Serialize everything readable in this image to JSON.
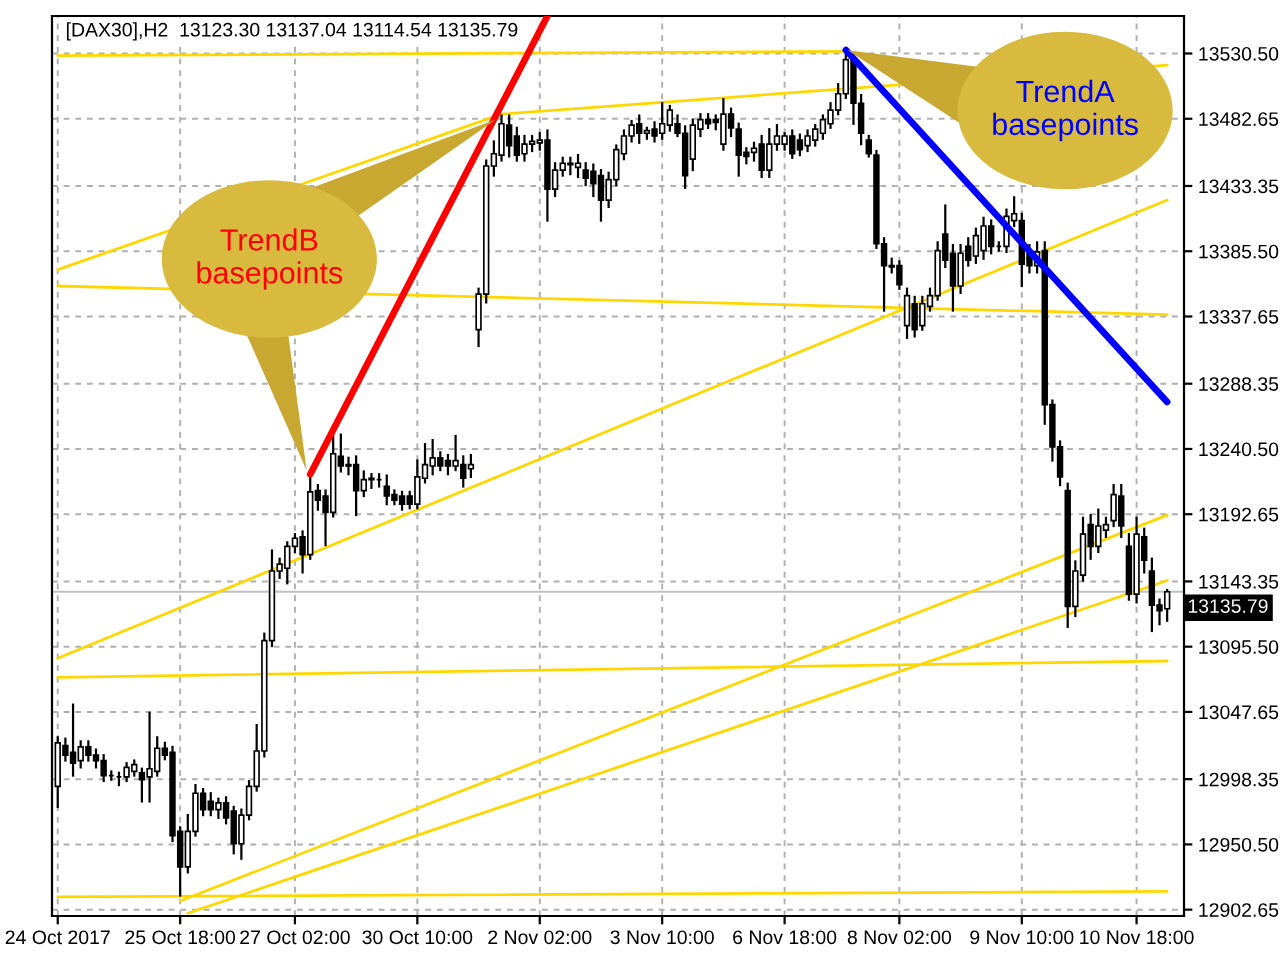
{
  "chart_data": {
    "type": "candlestick",
    "title": "[DAX30],H2  13123.30 13137.04 13114.54 13135.79",
    "categories": [
      "24 Oct 2017",
      null,
      null,
      null,
      null,
      null,
      null,
      null,
      null,
      null,
      null,
      null,
      null,
      null,
      null,
      null,
      "25 Oct 18:00",
      null,
      null,
      null,
      null,
      null,
      null,
      null,
      null,
      null,
      null,
      null,
      null,
      null,
      null,
      "27 Oct 02:00",
      null,
      null,
      null,
      null,
      null,
      null,
      null,
      null,
      null,
      null,
      null,
      null,
      null,
      null,
      null,
      "30 Oct 10:00",
      null,
      null,
      null,
      null,
      null,
      null,
      null,
      null,
      null,
      null,
      null,
      null,
      null,
      null,
      null,
      "2 Nov 02:00",
      null,
      null,
      null,
      null,
      null,
      null,
      null,
      null,
      null,
      null,
      null,
      null,
      null,
      null,
      null,
      "3 Nov 10:00",
      null,
      null,
      null,
      null,
      null,
      null,
      null,
      null,
      null,
      null,
      null,
      null,
      null,
      null,
      null,
      "6 Nov 18:00",
      null,
      null,
      null,
      null,
      null,
      null,
      null,
      null,
      null,
      null,
      null,
      null,
      null,
      null,
      "8 Nov 02:00",
      null,
      null,
      null,
      null,
      null,
      null,
      null,
      null,
      null,
      null,
      null,
      null,
      null,
      null,
      null,
      "9 Nov 10:00",
      null,
      null,
      null,
      null,
      null,
      null,
      null,
      null,
      null,
      null,
      null,
      null,
      null,
      null,
      "10 Nov 18:00",
      null,
      null,
      null,
      null
    ],
    "ohlc": [
      [
        12993,
        13029,
        12978,
        13025
      ],
      [
        13023,
        13028,
        13012,
        13016
      ],
      [
        13018,
        13053,
        13001,
        13010
      ],
      [
        13012,
        13026,
        13007,
        13022
      ],
      [
        13022,
        13026,
        13012,
        13016
      ],
      [
        13016,
        13020,
        13007,
        13012
      ],
      [
        13012,
        13016,
        12997,
        13001
      ],
      [
        13001,
        13004,
        12998,
        13001
      ],
      [
        13000,
        13003,
        12994,
        13000
      ],
      [
        13000,
        13010,
        12997,
        13007
      ],
      [
        13004,
        13012,
        13001,
        13009
      ],
      [
        13003,
        13006,
        12982,
        12998
      ],
      [
        13000,
        13047,
        12982,
        13006
      ],
      [
        13004,
        13029,
        13001,
        13021
      ],
      [
        13021,
        13025,
        13013,
        13016
      ],
      [
        13018,
        13022,
        12953,
        12957
      ],
      [
        12960,
        12963,
        12913,
        12934
      ],
      [
        12934,
        12972,
        12930,
        12960
      ],
      [
        12960,
        12994,
        12957,
        12988
      ],
      [
        12988,
        12991,
        12972,
        12976
      ],
      [
        12982,
        12988,
        12972,
        12976
      ],
      [
        12976,
        12984,
        12970,
        12981
      ],
      [
        12981,
        12985,
        12966,
        12970
      ],
      [
        12975,
        12978,
        12944,
        12951
      ],
      [
        12951,
        12976,
        12940,
        12972
      ],
      [
        12972,
        12997,
        12969,
        12993
      ],
      [
        12993,
        13038,
        12990,
        13019
      ],
      [
        13019,
        13105,
        13015,
        13100
      ],
      [
        13100,
        13166,
        13096,
        13151
      ],
      [
        13151,
        13160,
        13146,
        13156
      ],
      [
        13153,
        13172,
        13142,
        13169
      ],
      [
        13169,
        13178,
        13165,
        13175
      ],
      [
        13176,
        13180,
        13150,
        13163
      ],
      [
        13163,
        13222,
        13160,
        13209
      ],
      [
        13210,
        13214,
        13196,
        13203
      ],
      [
        13206,
        13210,
        13170,
        13194
      ],
      [
        13194,
        13250,
        13191,
        13237
      ],
      [
        13235,
        13251,
        13224,
        13228
      ],
      [
        13228,
        13234,
        13222,
        13229
      ],
      [
        13229,
        13235,
        13192,
        13210
      ],
      [
        13210,
        13224,
        13206,
        13218
      ],
      [
        13218,
        13222,
        13212,
        13219
      ],
      [
        13218,
        13222,
        13213,
        13218
      ],
      [
        13213,
        13221,
        13200,
        13206
      ],
      [
        13207,
        13210,
        13200,
        13203
      ],
      [
        13206,
        13209,
        13196,
        13200
      ],
      [
        13206,
        13209,
        13197,
        13200
      ],
      [
        13200,
        13232,
        13197,
        13220
      ],
      [
        13219,
        13244,
        13216,
        13229
      ],
      [
        13228,
        13247,
        13222,
        13234
      ],
      [
        13234,
        13238,
        13225,
        13228
      ],
      [
        13232,
        13236,
        13222,
        13228
      ],
      [
        13228,
        13250,
        13225,
        13232
      ],
      [
        13229,
        13235,
        13213,
        13219
      ],
      [
        13226,
        13236,
        13220,
        13229
      ],
      [
        13328,
        13358,
        13316,
        13354
      ],
      [
        13354,
        13452,
        13348,
        13448
      ],
      [
        13448,
        13466,
        13441,
        13457
      ],
      [
        13456,
        13485,
        13452,
        13479
      ],
      [
        13478,
        13485,
        13455,
        13463
      ],
      [
        13470,
        13476,
        13452,
        13456
      ],
      [
        13457,
        13470,
        13452,
        13464
      ],
      [
        13464,
        13470,
        13459,
        13466
      ],
      [
        13465,
        13472,
        13460,
        13467
      ],
      [
        13467,
        13474,
        13408,
        13431
      ],
      [
        13431,
        13450,
        13426,
        13445
      ],
      [
        13445,
        13454,
        13441,
        13450
      ],
      [
        13450,
        13454,
        13442,
        13449
      ],
      [
        13447,
        13456,
        13440,
        13450
      ],
      [
        13445,
        13450,
        13434,
        13439
      ],
      [
        13444,
        13449,
        13426,
        13435
      ],
      [
        13441,
        13445,
        13408,
        13423
      ],
      [
        13423,
        13443,
        13418,
        13438
      ],
      [
        13438,
        13463,
        13434,
        13460
      ],
      [
        13457,
        13474,
        13453,
        13470
      ],
      [
        13470,
        13481,
        13466,
        13478
      ],
      [
        13479,
        13485,
        13465,
        13472
      ],
      [
        13472,
        13476,
        13468,
        13474
      ],
      [
        13475,
        13480,
        13466,
        13470
      ],
      [
        13472,
        13494,
        13468,
        13479
      ],
      [
        13478,
        13492,
        13474,
        13489
      ],
      [
        13479,
        13485,
        13470,
        13472
      ],
      [
        13472,
        13477,
        13432,
        13441
      ],
      [
        13453,
        13482,
        13445,
        13478
      ],
      [
        13475,
        13486,
        13470,
        13482
      ],
      [
        13482,
        13486,
        13476,
        13479
      ],
      [
        13482,
        13485,
        13475,
        13480
      ],
      [
        13464,
        13497,
        13460,
        13486
      ],
      [
        13486,
        13490,
        13470,
        13476
      ],
      [
        13475,
        13479,
        13441,
        13456
      ],
      [
        13458,
        13461,
        13450,
        13455
      ],
      [
        13458,
        13465,
        13452,
        13461
      ],
      [
        13464,
        13470,
        13440,
        13445
      ],
      [
        13445,
        13475,
        13440,
        13464
      ],
      [
        13464,
        13478,
        13460,
        13470
      ],
      [
        13464,
        13472,
        13460,
        13470
      ],
      [
        13470,
        13474,
        13454,
        13457
      ],
      [
        13467,
        13471,
        13456,
        13460
      ],
      [
        13463,
        13474,
        13459,
        13470
      ],
      [
        13467,
        13478,
        13463,
        13475
      ],
      [
        13472,
        13485,
        13468,
        13482
      ],
      [
        13479,
        13494,
        13476,
        13489
      ],
      [
        13489,
        13508,
        13486,
        13501
      ],
      [
        13501,
        13533,
        13498,
        13526
      ],
      [
        13526,
        13529,
        13479,
        13494
      ],
      [
        13494,
        13500,
        13464,
        13472
      ],
      [
        13467,
        13470,
        13455,
        13457
      ],
      [
        13456,
        13459,
        13388,
        13391
      ],
      [
        13391,
        13395,
        13342,
        13375
      ],
      [
        13375,
        13380,
        13370,
        13374
      ],
      [
        13375,
        13378,
        13358,
        13361
      ],
      [
        13331,
        13358,
        13322,
        13353
      ],
      [
        13347,
        13352,
        13323,
        13328
      ],
      [
        13331,
        13352,
        13328,
        13347
      ],
      [
        13345,
        13358,
        13342,
        13353
      ],
      [
        13353,
        13392,
        13350,
        13386
      ],
      [
        13398,
        13419,
        13374,
        13379
      ],
      [
        13384,
        13390,
        13342,
        13360
      ],
      [
        13360,
        13390,
        13355,
        13384
      ],
      [
        13389,
        13395,
        13375,
        13379
      ],
      [
        13382,
        13402,
        13377,
        13397
      ],
      [
        13386,
        13410,
        13380,
        13404
      ],
      [
        13404,
        13408,
        13384,
        13389
      ],
      [
        13389,
        13392,
        13386,
        13389
      ],
      [
        13389,
        13416,
        13385,
        13411
      ],
      [
        13408,
        13425,
        13404,
        13413
      ],
      [
        13408,
        13413,
        13360,
        13376
      ],
      [
        13384,
        13390,
        13370,
        13375
      ],
      [
        13375,
        13392,
        13370,
        13385
      ],
      [
        13386,
        13392,
        13259,
        13273
      ],
      [
        13273,
        13276,
        13232,
        13242
      ],
      [
        13242,
        13246,
        13214,
        13220
      ],
      [
        13210,
        13215,
        13110,
        13125
      ],
      [
        13125,
        13158,
        13118,
        13151
      ],
      [
        13148,
        13190,
        13144,
        13178
      ],
      [
        13185,
        13192,
        13160,
        13169
      ],
      [
        13169,
        13196,
        13165,
        13184
      ],
      [
        13181,
        13190,
        13176,
        13185
      ],
      [
        13188,
        13214,
        13184,
        13207
      ],
      [
        13206,
        13214,
        13176,
        13184
      ],
      [
        13169,
        13178,
        13130,
        13134
      ],
      [
        13134,
        13190,
        13128,
        13178
      ],
      [
        13176,
        13182,
        13150,
        13159
      ],
      [
        13151,
        13160,
        13107,
        13126
      ],
      [
        13126,
        13130,
        13112,
        13122
      ],
      [
        13123.3,
        13137.04,
        13114.54,
        13135.79
      ]
    ],
    "series": [
      {
        "type": "line",
        "color": "#ffd700",
        "values": [
          13087,
          null,
          null,
          null,
          null,
          null,
          null,
          null,
          null,
          null,
          null,
          null,
          null,
          null,
          null,
          null,
          null,
          null,
          null,
          null,
          null,
          null,
          null,
          null,
          null,
          null,
          null,
          null,
          null,
          null,
          null,
          null,
          null,
          null,
          null,
          null,
          null,
          null,
          null,
          null,
          null,
          null,
          null,
          null,
          null,
          null,
          null,
          null,
          null,
          null,
          null,
          null,
          null,
          null,
          null,
          null,
          null,
          null,
          null,
          null,
          null,
          null,
          null,
          null,
          null,
          null,
          null,
          null,
          null,
          null,
          null,
          null,
          null,
          null,
          null,
          null,
          null,
          null,
          null,
          null,
          null,
          null,
          null,
          null,
          null,
          null,
          null,
          null,
          null,
          null,
          null,
          null,
          null,
          null,
          null,
          null,
          null,
          null,
          null,
          null,
          null,
          null,
          null,
          null,
          null,
          null,
          null,
          null,
          null,
          null,
          null,
          null,
          null,
          null,
          null,
          null,
          null,
          null,
          null,
          null,
          null,
          null,
          null,
          null,
          null,
          null,
          null,
          null,
          null,
          null,
          null,
          null,
          null,
          null,
          null,
          null,
          null,
          null,
          null,
          null,
          null,
          null,
          null,
          null,
          null,
          13423
        ]
      },
      {
        "type": "line",
        "color": "#ffd700",
        "values": [
          13073,
          null,
          null,
          null,
          null,
          null,
          null,
          null,
          null,
          null,
          null,
          null,
          null,
          null,
          null,
          null,
          null,
          null,
          null,
          null,
          null,
          null,
          null,
          null,
          null,
          null,
          null,
          null,
          null,
          null,
          null,
          null,
          null,
          null,
          null,
          null,
          null,
          null,
          null,
          null,
          null,
          null,
          null,
          null,
          null,
          null,
          null,
          null,
          null,
          null,
          null,
          null,
          null,
          null,
          null,
          null,
          null,
          null,
          null,
          null,
          null,
          null,
          null,
          null,
          null,
          null,
          null,
          null,
          null,
          null,
          null,
          null,
          null,
          null,
          null,
          null,
          null,
          null,
          null,
          null,
          null,
          null,
          null,
          null,
          null,
          null,
          null,
          null,
          null,
          null,
          null,
          null,
          null,
          null,
          null,
          null,
          null,
          null,
          null,
          null,
          null,
          null,
          null,
          null,
          null,
          null,
          null,
          null,
          null,
          null,
          null,
          null,
          null,
          null,
          null,
          null,
          null,
          null,
          null,
          null,
          null,
          null,
          null,
          null,
          null,
          null,
          null,
          null,
          null,
          null,
          null,
          null,
          null,
          null,
          null,
          null,
          null,
          null,
          null,
          null,
          null,
          null,
          null,
          null,
          null,
          13085
        ]
      },
      {
        "type": "line",
        "color": "#ffd700",
        "values": [
          12912,
          null,
          null,
          null,
          null,
          null,
          null,
          null,
          null,
          null,
          null,
          null,
          null,
          null,
          null,
          null,
          null,
          null,
          null,
          null,
          null,
          null,
          null,
          null,
          null,
          null,
          null,
          null,
          null,
          null,
          null,
          null,
          null,
          null,
          null,
          null,
          null,
          null,
          null,
          null,
          null,
          null,
          null,
          null,
          null,
          null,
          null,
          null,
          null,
          null,
          null,
          null,
          null,
          null,
          null,
          null,
          null,
          null,
          null,
          null,
          null,
          null,
          null,
          null,
          null,
          null,
          null,
          null,
          null,
          null,
          null,
          null,
          null,
          null,
          null,
          null,
          null,
          null,
          null,
          null,
          null,
          null,
          null,
          null,
          null,
          null,
          null,
          null,
          null,
          null,
          null,
          null,
          null,
          null,
          null,
          null,
          null,
          null,
          null,
          null,
          null,
          null,
          null,
          null,
          null,
          null,
          null,
          null,
          null,
          null,
          null,
          null,
          null,
          null,
          null,
          null,
          null,
          null,
          null,
          null,
          null,
          null,
          null,
          null,
          null,
          null,
          null,
          null,
          null,
          null,
          null,
          null,
          null,
          null,
          null,
          null,
          null,
          null,
          null,
          null,
          null,
          null,
          null,
          null,
          null,
          12916
        ]
      },
      {
        "type": "line",
        "color": "#ffd700",
        "values": [
          13360,
          null,
          null,
          null,
          null,
          null,
          null,
          null,
          null,
          null,
          null,
          null,
          null,
          null,
          null,
          null,
          null,
          null,
          null,
          null,
          null,
          null,
          null,
          null,
          null,
          null,
          null,
          null,
          null,
          null,
          null,
          null,
          null,
          null,
          null,
          null,
          null,
          null,
          null,
          null,
          null,
          null,
          null,
          null,
          null,
          null,
          null,
          null,
          null,
          null,
          null,
          null,
          null,
          null,
          null,
          null,
          null,
          null,
          null,
          null,
          null,
          null,
          null,
          null,
          null,
          null,
          null,
          null,
          null,
          null,
          null,
          null,
          null,
          null,
          null,
          null,
          null,
          null,
          null,
          null,
          null,
          null,
          null,
          null,
          null,
          null,
          null,
          null,
          null,
          null,
          null,
          null,
          null,
          null,
          null,
          null,
          null,
          null,
          null,
          null,
          null,
          null,
          null,
          null,
          null,
          null,
          null,
          null,
          null,
          null,
          null,
          null,
          null,
          null,
          null,
          null,
          null,
          null,
          null,
          null,
          null,
          null,
          null,
          null,
          null,
          null,
          null,
          null,
          null,
          null,
          null,
          null,
          null,
          null,
          null,
          null,
          null,
          null,
          null,
          null,
          null,
          null,
          null,
          null,
          null,
          13339
        ]
      },
      {
        "type": "line",
        "color": "#ffd700",
        "values": [
          null,
          null,
          null,
          null,
          null,
          null,
          null,
          null,
          null,
          null,
          null,
          null,
          null,
          null,
          null,
          null,
          12909,
          null,
          null,
          null,
          null,
          null,
          null,
          null,
          null,
          null,
          null,
          null,
          null,
          null,
          null,
          null,
          null,
          null,
          null,
          null,
          null,
          null,
          null,
          null,
          null,
          null,
          null,
          null,
          null,
          null,
          null,
          null,
          null,
          null,
          null,
          null,
          null,
          null,
          null,
          null,
          null,
          null,
          null,
          null,
          null,
          null,
          null,
          null,
          null,
          null,
          null,
          null,
          null,
          null,
          null,
          null,
          null,
          null,
          null,
          null,
          null,
          null,
          null,
          null,
          null,
          null,
          null,
          null,
          null,
          null,
          null,
          null,
          null,
          null,
          null,
          null,
          null,
          null,
          null,
          null,
          null,
          null,
          null,
          null,
          null,
          null,
          null,
          null,
          null,
          null,
          null,
          null,
          null,
          null,
          null,
          null,
          null,
          null,
          null,
          null,
          null,
          null,
          null,
          null,
          null,
          null,
          null,
          null,
          null,
          null,
          null,
          null,
          null,
          null,
          null,
          null,
          null,
          null,
          null,
          null,
          null,
          null,
          null,
          null,
          null,
          null,
          null,
          null,
          null,
          13192
        ]
      },
      {
        "type": "line",
        "color": "#ffd700",
        "values": [
          null,
          null,
          null,
          null,
          null,
          null,
          null,
          null,
          null,
          null,
          null,
          null,
          null,
          null,
          null,
          null,
          null,
          12900,
          null,
          null,
          null,
          null,
          null,
          null,
          null,
          null,
          null,
          null,
          null,
          null,
          null,
          null,
          null,
          null,
          null,
          null,
          null,
          null,
          null,
          null,
          null,
          null,
          null,
          null,
          null,
          null,
          null,
          null,
          null,
          null,
          null,
          null,
          null,
          null,
          null,
          null,
          null,
          null,
          null,
          null,
          null,
          null,
          null,
          null,
          null,
          null,
          null,
          null,
          null,
          null,
          null,
          null,
          null,
          null,
          null,
          null,
          null,
          null,
          null,
          null,
          null,
          null,
          null,
          null,
          null,
          null,
          null,
          null,
          null,
          null,
          null,
          null,
          null,
          null,
          null,
          null,
          null,
          null,
          null,
          null,
          null,
          null,
          null,
          null,
          null,
          null,
          null,
          null,
          null,
          null,
          null,
          null,
          null,
          null,
          null,
          null,
          null,
          null,
          null,
          null,
          null,
          null,
          null,
          null,
          null,
          null,
          null,
          null,
          null,
          null,
          null,
          null,
          null,
          null,
          null,
          null,
          null,
          null,
          null,
          null,
          null,
          null,
          null,
          null,
          null,
          13144
        ]
      },
      {
        "type": "line",
        "color": "#ffd700",
        "values": [
          13529,
          null,
          null,
          null,
          null,
          null,
          null,
          null,
          null,
          null,
          null,
          null,
          null,
          null,
          null,
          null,
          null,
          null,
          null,
          null,
          null,
          null,
          null,
          null,
          null,
          null,
          null,
          null,
          null,
          null,
          null,
          null,
          null,
          null,
          null,
          null,
          null,
          null,
          null,
          null,
          null,
          null,
          null,
          null,
          null,
          null,
          null,
          null,
          null,
          null,
          null,
          null,
          null,
          null,
          null,
          null,
          null,
          null,
          null,
          null,
          null,
          null,
          null,
          null,
          null,
          null,
          null,
          null,
          null,
          null,
          null,
          null,
          null,
          null,
          null,
          null,
          null,
          null,
          null,
          null,
          null,
          null,
          null,
          null,
          null,
          null,
          null,
          null,
          null,
          null,
          null,
          null,
          null,
          null,
          null,
          null,
          null,
          null,
          null,
          null,
          null,
          null,
          null,
          13532,
          null,
          null,
          null,
          null,
          null,
          null,
          null,
          null,
          null,
          null,
          null,
          null,
          null,
          null,
          null,
          null,
          null,
          null,
          null,
          null,
          null,
          null,
          null,
          null,
          null,
          null,
          null,
          null,
          null,
          null,
          null,
          null,
          null,
          null,
          null,
          null,
          null,
          null,
          null,
          null,
          null,
          null
        ]
      },
      {
        "type": "line",
        "color": "#ffd700",
        "values": [
          13372,
          null,
          null,
          null,
          null,
          null,
          null,
          null,
          null,
          null,
          null,
          null,
          null,
          null,
          null,
          null,
          null,
          null,
          null,
          null,
          null,
          null,
          null,
          null,
          null,
          null,
          null,
          null,
          null,
          null,
          null,
          null,
          null,
          null,
          null,
          null,
          null,
          null,
          null,
          null,
          null,
          null,
          null,
          null,
          null,
          null,
          null,
          null,
          null,
          null,
          null,
          null,
          null,
          null,
          null,
          null,
          null,
          null,
          13486,
          null,
          null,
          null,
          null,
          null,
          null,
          null,
          null,
          null,
          null,
          null,
          null,
          null,
          null,
          null,
          null,
          null,
          null,
          null,
          null,
          null,
          null,
          null,
          null,
          null,
          null,
          null,
          null,
          null,
          null,
          null,
          null,
          null,
          null,
          null,
          null,
          null,
          null,
          null,
          null,
          null,
          null,
          null,
          null,
          null,
          null,
          null,
          null,
          null,
          null,
          null,
          null,
          null,
          null,
          null,
          null,
          null,
          null,
          null,
          null,
          null,
          null,
          null,
          null,
          null,
          null,
          null,
          null,
          null,
          null,
          null,
          null,
          null,
          null,
          null,
          null,
          null,
          null,
          null,
          null,
          null,
          null,
          null,
          null,
          null,
          null,
          13522
        ]
      },
      {
        "type": "line",
        "color": "#ff0000",
        "values": [
          null,
          null,
          null,
          null,
          null,
          null,
          null,
          null,
          null,
          null,
          null,
          null,
          null,
          null,
          null,
          null,
          null,
          null,
          null,
          null,
          null,
          null,
          null,
          null,
          null,
          null,
          null,
          null,
          null,
          null,
          null,
          null,
          null,
          13222,
          null,
          null,
          null,
          null,
          null,
          null,
          null,
          null,
          null,
          null,
          null,
          null,
          null,
          null,
          null,
          null,
          null,
          null,
          null,
          null,
          null,
          null,
          null,
          null,
          null,
          null,
          null,
          null,
          null,
          null,
          13558,
          null,
          null,
          null,
          null,
          null,
          null,
          null,
          null,
          null,
          null,
          null,
          null,
          null,
          null,
          null,
          null,
          null,
          null,
          null,
          null,
          null,
          null,
          null,
          null,
          null,
          null,
          null,
          null,
          null,
          null,
          null,
          null,
          null,
          null,
          null,
          null,
          null,
          null,
          null,
          null,
          null,
          null,
          null,
          null,
          null,
          null,
          null,
          null,
          null,
          null,
          null,
          null,
          null,
          null,
          null,
          null,
          null,
          null,
          null,
          null,
          null,
          null,
          null,
          null,
          null,
          null,
          null,
          null,
          null,
          null,
          null,
          null,
          null,
          null,
          null,
          null,
          null,
          null,
          null,
          null,
          null
        ]
      },
      {
        "type": "line",
        "color": "#0000ff",
        "values": [
          null,
          null,
          null,
          null,
          null,
          null,
          null,
          null,
          null,
          null,
          null,
          null,
          null,
          null,
          null,
          null,
          null,
          null,
          null,
          null,
          null,
          null,
          null,
          null,
          null,
          null,
          null,
          null,
          null,
          null,
          null,
          null,
          null,
          null,
          null,
          null,
          null,
          null,
          null,
          null,
          null,
          null,
          null,
          null,
          null,
          null,
          null,
          null,
          null,
          null,
          null,
          null,
          null,
          null,
          null,
          null,
          null,
          null,
          null,
          null,
          null,
          null,
          null,
          null,
          null,
          null,
          null,
          null,
          null,
          null,
          null,
          null,
          null,
          null,
          null,
          null,
          null,
          null,
          null,
          null,
          null,
          null,
          null,
          null,
          null,
          null,
          null,
          null,
          null,
          null,
          null,
          null,
          null,
          null,
          null,
          null,
          null,
          null,
          null,
          null,
          null,
          null,
          null,
          13533,
          null,
          null,
          null,
          null,
          null,
          null,
          null,
          null,
          null,
          null,
          null,
          null,
          null,
          null,
          null,
          null,
          null,
          null,
          null,
          null,
          null,
          null,
          null,
          null,
          null,
          null,
          null,
          null,
          null,
          null,
          null,
          null,
          null,
          null,
          null,
          null,
          null,
          null,
          null,
          null,
          null,
          13275
        ]
      }
    ],
    "ylim": [
      12898,
      13558
    ],
    "yticks": [
      {
        "value": 13530.5,
        "label": "13530.50"
      },
      {
        "value": 13482.65,
        "label": "13482.65"
      },
      {
        "value": 13433.35,
        "label": "13433.35"
      },
      {
        "value": 13385.5,
        "label": "13385.50"
      },
      {
        "value": 13337.65,
        "label": "13337.65"
      },
      {
        "value": 13288.35,
        "label": "13288.35"
      },
      {
        "value": 13240.5,
        "label": "13240.50"
      },
      {
        "value": 13192.65,
        "label": "13192.65"
      },
      {
        "value": 13143.35,
        "label": "13143.35"
      },
      {
        "value": 13095.5,
        "label": "13095.50"
      },
      {
        "value": 13047.65,
        "label": "13047.65"
      },
      {
        "value": 12998.35,
        "label": "12998.35"
      },
      {
        "value": 12950.5,
        "label": "12950.50"
      },
      {
        "value": 12902.65,
        "label": "12902.65"
      }
    ],
    "ref_lines": [
      {
        "axis": "y",
        "value": 13135.79,
        "label": "13135.79",
        "color": "#c0c0c0"
      }
    ],
    "annotations": [
      "TrendB\nbasepoints",
      "TrendA\nbasepoints"
    ],
    "grid": true
  }
}
